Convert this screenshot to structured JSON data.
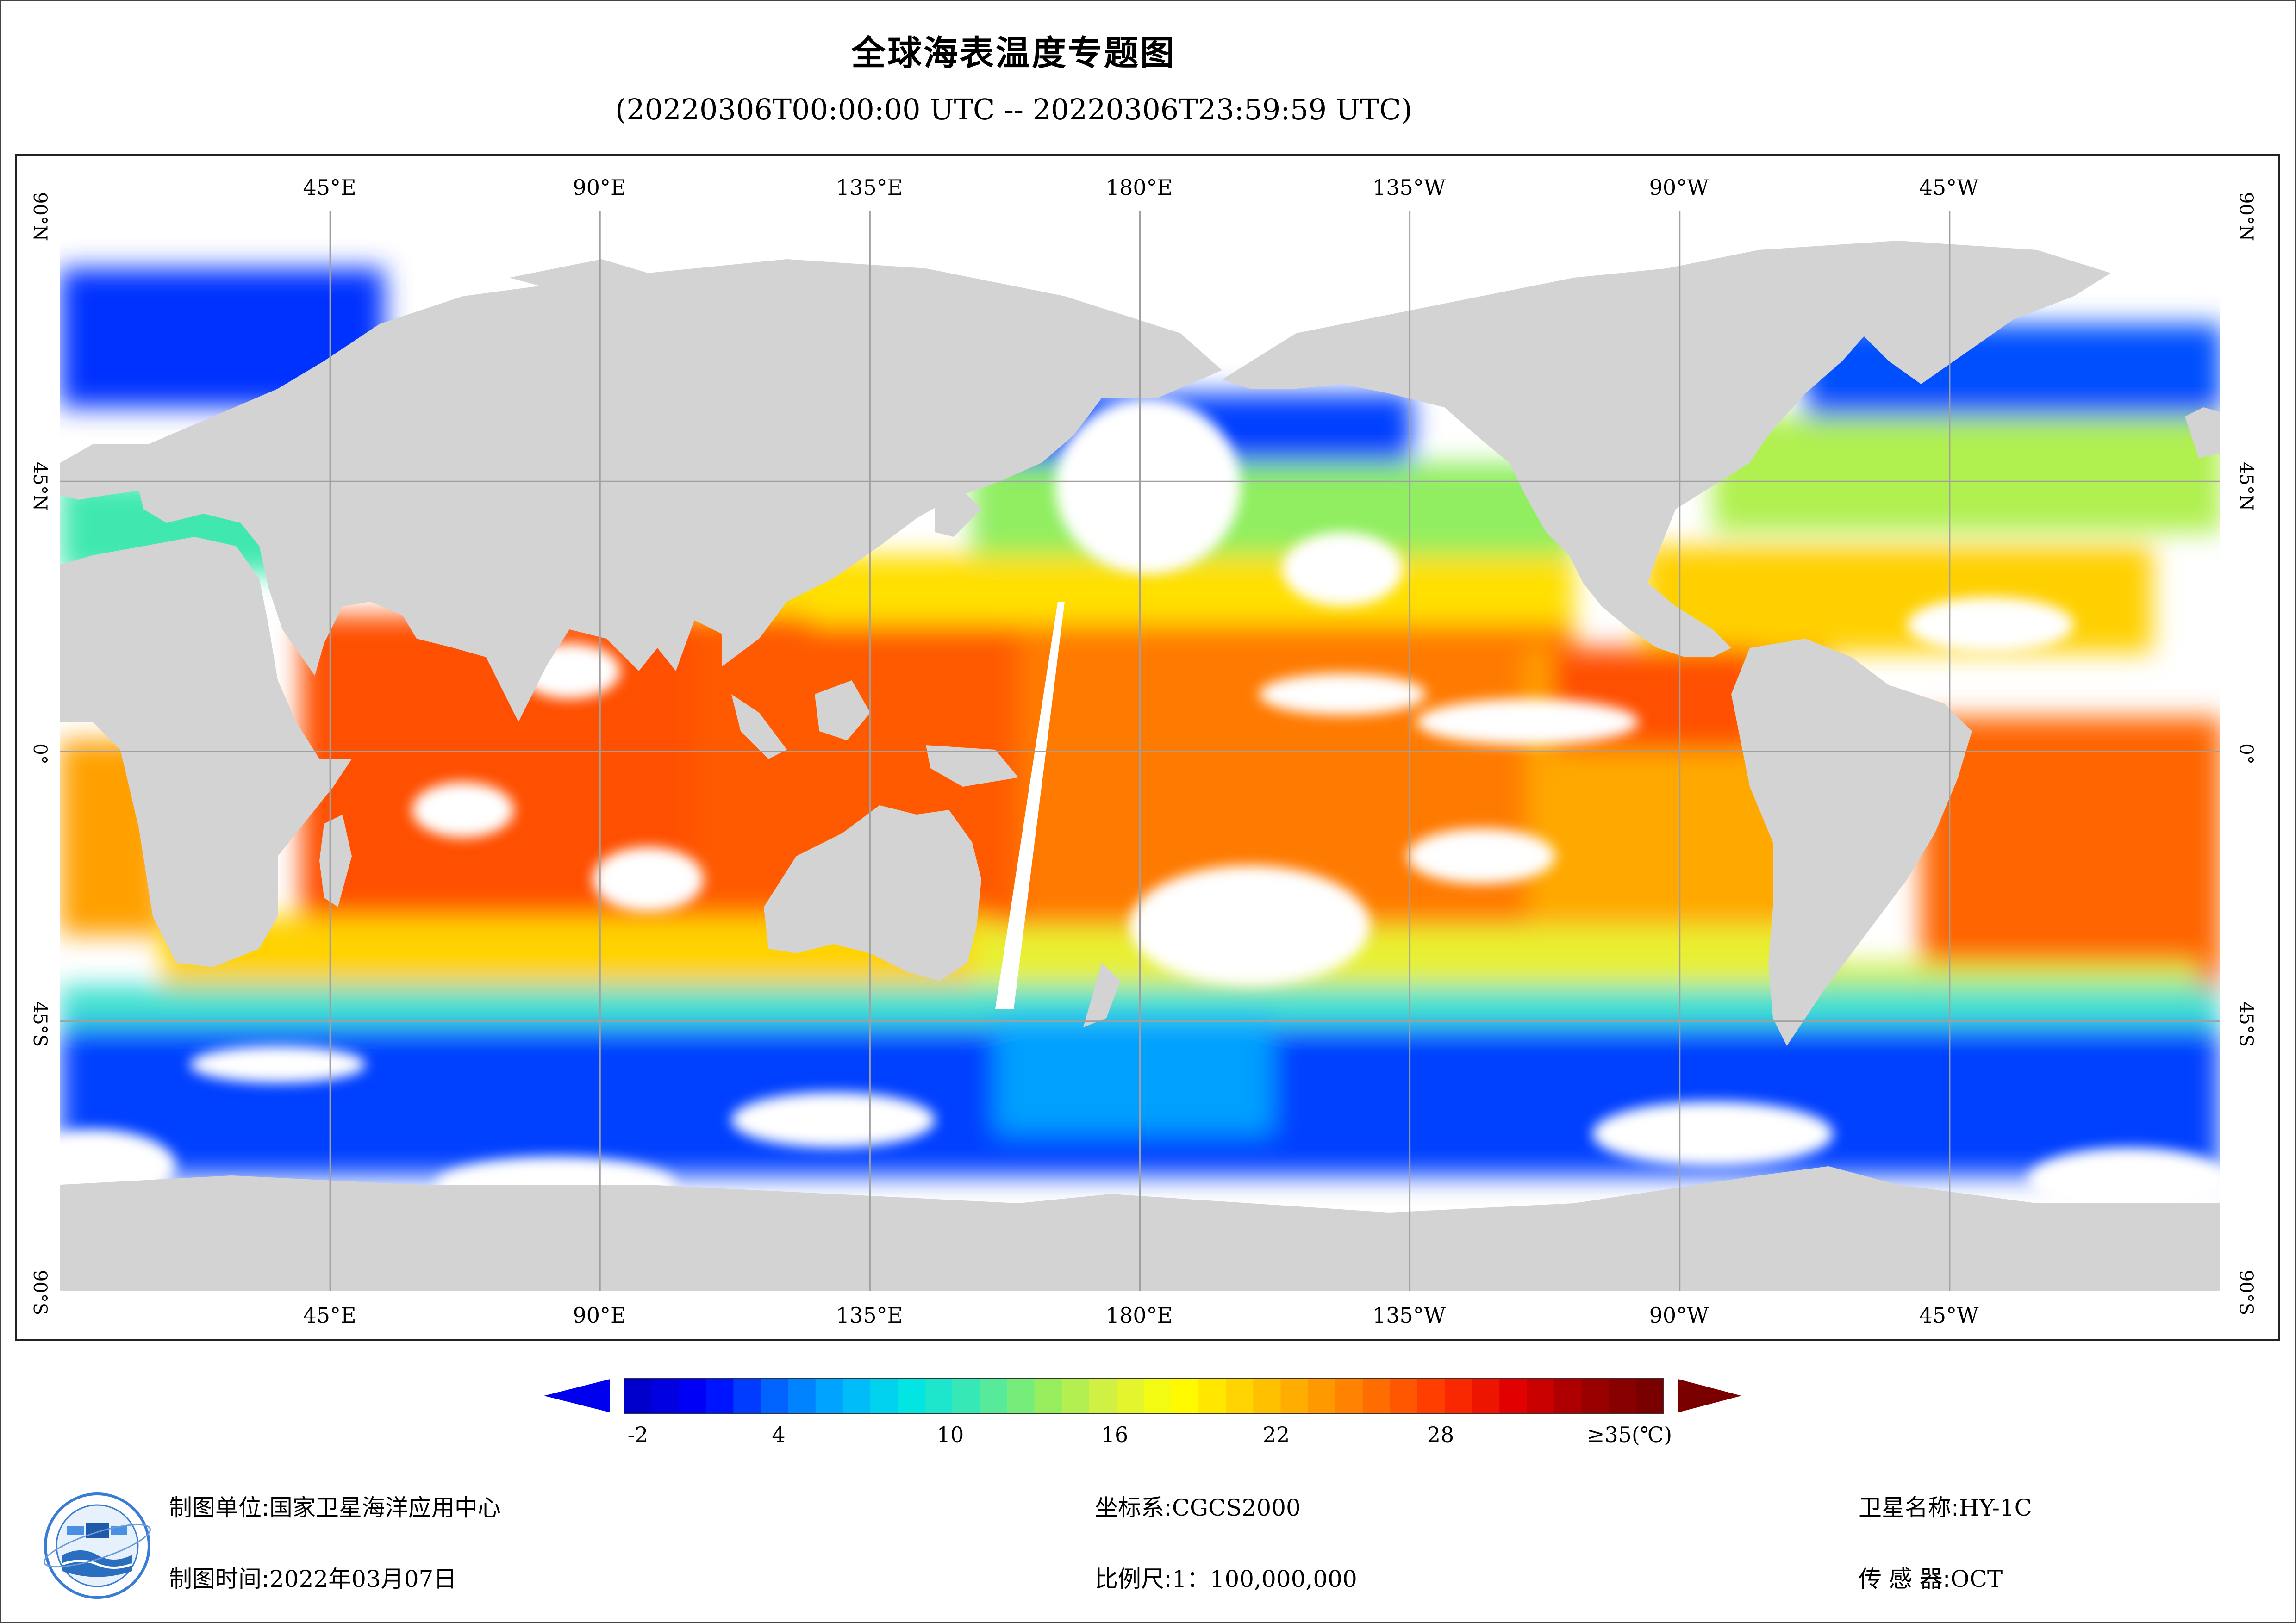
{
  "title": "全球海表温度专题图",
  "subtitle": "(20220306T00:00:00 UTC -- 20220306T23:59:59 UTC)",
  "map": {
    "lon_labels": [
      "45°E",
      "90°E",
      "135°E",
      "180°E",
      "135°W",
      "90°W",
      "45°W"
    ],
    "lat_labels": [
      "90°N",
      "45°N",
      "0°",
      "45°S",
      "90°S"
    ],
    "colors": {
      "land": "#d3d3d3",
      "cloud": "#ffffff",
      "grid": "#a0a0a0"
    },
    "sst_regions": [
      {
        "name": "tropical-warm-pool",
        "level": 29
      },
      {
        "name": "equatorial-pacific",
        "level": 26
      },
      {
        "name": "subtropical-bands",
        "level": 21
      },
      {
        "name": "mid-latitude",
        "level": 14
      },
      {
        "name": "southern-ocean",
        "level": 2
      },
      {
        "name": "arctic",
        "level": -1
      }
    ]
  },
  "colorbar": {
    "tick_labels": [
      "-2",
      "4",
      "10",
      "16",
      "22",
      "28",
      "≥35(℃)"
    ],
    "min": -2,
    "max": 35,
    "step": 1,
    "stops": [
      "#0000cd",
      "#0000ff",
      "#0060ff",
      "#00b0ff",
      "#00e5e5",
      "#40e8b0",
      "#90ee60",
      "#d8f040",
      "#ffff00",
      "#ffd000",
      "#ffa000",
      "#ff6a00",
      "#ff3000",
      "#e00000",
      "#a00000",
      "#7a0000"
    ]
  },
  "footer": {
    "org_label": "制图单位:",
    "org_value": "国家卫星海洋应用中心",
    "time_label": "制图时间:",
    "time_value": "2022年03月07日",
    "crs_label": "坐标系:",
    "crs_value": "CGCS2000",
    "scale_label": "比例尺:",
    "scale_value": "1：100,000,000",
    "sat_label": "卫星名称:",
    "sat_value": "HY-1C",
    "sensor_label": "传 感 器:",
    "sensor_value": "OCT"
  }
}
